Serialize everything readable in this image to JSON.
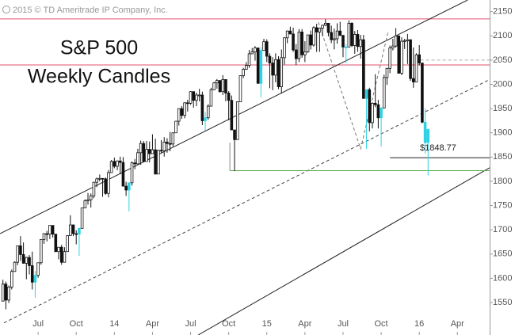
{
  "chart_data": {
    "type": "candlestick",
    "title": "S&P 500",
    "subtitle": "Weekly Candles",
    "credit": "2015 © TD Ameritrade IP Company, Inc.",
    "xlim": [
      -1,
      166
    ],
    "ylim": [
      1483,
      2174
    ],
    "yticks": [
      1550,
      1600,
      1650,
      1700,
      1750,
      1800,
      1850,
      1900,
      1950,
      2000,
      2050,
      2100,
      2150
    ],
    "xticks": [
      {
        "value": 12,
        "label": "Jul"
      },
      {
        "value": 25,
        "label": "Oct"
      },
      {
        "value": 38,
        "label": "14"
      },
      {
        "value": 51,
        "label": "Apr"
      },
      {
        "value": 64,
        "label": "Jul"
      },
      {
        "value": 77,
        "label": "Oct"
      },
      {
        "value": 90,
        "label": "15"
      },
      {
        "value": 103,
        "label": "Apr"
      },
      {
        "value": 116,
        "label": "Jul"
      },
      {
        "value": 129,
        "label": "Oct"
      },
      {
        "value": 142,
        "label": "16"
      },
      {
        "value": 155,
        "label": "Apr"
      }
    ],
    "highlight_color": "#2fd2e4",
    "highlight": [
      11,
      26,
      43,
      69,
      88,
      117,
      124,
      129,
      144,
      145
    ],
    "ohlc": [
      [
        1553,
        1597,
        1552,
        1588
      ],
      [
        1588,
        1593,
        1536,
        1555
      ],
      [
        1555,
        1585,
        1549,
        1582
      ],
      [
        1582,
        1618,
        1577,
        1614
      ],
      [
        1614,
        1635,
        1614,
        1633
      ],
      [
        1633,
        1667,
        1627,
        1667
      ],
      [
        1667,
        1687,
        1636,
        1649
      ],
      [
        1649,
        1674,
        1630,
        1631
      ],
      [
        1631,
        1644,
        1598,
        1643
      ],
      [
        1643,
        1648,
        1608,
        1626
      ],
      [
        1626,
        1655,
        1577,
        1592
      ],
      [
        1592,
        1615,
        1560,
        1606
      ],
      [
        1606,
        1632,
        1601,
        1632
      ],
      [
        1632,
        1680,
        1628,
        1680
      ],
      [
        1680,
        1693,
        1671,
        1692
      ],
      [
        1692,
        1698,
        1676,
        1691
      ],
      [
        1691,
        1709,
        1681,
        1709
      ],
      [
        1709,
        1709,
        1684,
        1691
      ],
      [
        1691,
        1691,
        1654,
        1655
      ],
      [
        1655,
        1664,
        1639,
        1664
      ],
      [
        1664,
        1669,
        1628,
        1633
      ],
      [
        1633,
        1664,
        1633,
        1655
      ],
      [
        1655,
        1689,
        1655,
        1688
      ],
      [
        1688,
        1730,
        1688,
        1710
      ],
      [
        1710,
        1711,
        1687,
        1692
      ],
      [
        1692,
        1699,
        1670,
        1691
      ],
      [
        1691,
        1704,
        1646,
        1703
      ],
      [
        1703,
        1745,
        1703,
        1745
      ],
      [
        1745,
        1763,
        1745,
        1760
      ],
      [
        1760,
        1776,
        1752,
        1762
      ],
      [
        1762,
        1775,
        1746,
        1770
      ],
      [
        1770,
        1799,
        1765,
        1798
      ],
      [
        1798,
        1808,
        1788,
        1805
      ],
      [
        1805,
        1814,
        1800,
        1806
      ],
      [
        1806,
        1806,
        1768,
        1805
      ],
      [
        1805,
        1808,
        1772,
        1775
      ],
      [
        1775,
        1823,
        1767,
        1818
      ],
      [
        1818,
        1844,
        1818,
        1841
      ],
      [
        1841,
        1849,
        1827,
        1831
      ],
      [
        1831,
        1843,
        1823,
        1842
      ],
      [
        1842,
        1851,
        1815,
        1839
      ],
      [
        1839,
        1850,
        1790,
        1790
      ],
      [
        1790,
        1799,
        1770,
        1782
      ],
      [
        1782,
        1797,
        1738,
        1797
      ],
      [
        1797,
        1841,
        1791,
        1838
      ],
      [
        1838,
        1846,
        1825,
        1836
      ],
      [
        1836,
        1867,
        1834,
        1859
      ],
      [
        1859,
        1884,
        1834,
        1878
      ],
      [
        1878,
        1883,
        1839,
        1841
      ],
      [
        1841,
        1883,
        1841,
        1866
      ],
      [
        1866,
        1882,
        1839,
        1857
      ],
      [
        1857,
        1897,
        1857,
        1865
      ],
      [
        1865,
        1888,
        1814,
        1815
      ],
      [
        1815,
        1865,
        1815,
        1864
      ],
      [
        1864,
        1885,
        1859,
        1863
      ],
      [
        1863,
        1891,
        1851,
        1881
      ],
      [
        1881,
        1889,
        1859,
        1878
      ],
      [
        1878,
        1902,
        1862,
        1877
      ],
      [
        1877,
        1901,
        1872,
        1900
      ],
      [
        1900,
        1924,
        1900,
        1924
      ],
      [
        1924,
        1950,
        1915,
        1950
      ],
      [
        1950,
        1955,
        1929,
        1936
      ],
      [
        1936,
        1963,
        1930,
        1962
      ],
      [
        1962,
        1968,
        1944,
        1961
      ],
      [
        1961,
        1986,
        1958,
        1985
      ],
      [
        1985,
        1985,
        1952,
        1967
      ],
      [
        1967,
        1983,
        1955,
        1978
      ],
      [
        1978,
        1991,
        1965,
        1978
      ],
      [
        1978,
        1985,
        1916,
        1925
      ],
      [
        1925,
        1943,
        1904,
        1931
      ],
      [
        1931,
        1959,
        1927,
        1955
      ],
      [
        1955,
        1993,
        1955,
        1989
      ],
      [
        1989,
        2005,
        1988,
        2003
      ],
      [
        2003,
        2011,
        1991,
        2008
      ],
      [
        2008,
        2008,
        1983,
        1985
      ],
      [
        1985,
        2019,
        1978,
        2010
      ],
      [
        2010,
        2010,
        1965,
        1982
      ],
      [
        1982,
        1986,
        1926,
        1967
      ],
      [
        1967,
        1977,
        1906,
        1906
      ],
      [
        1906,
        1906,
        1821,
        1886
      ],
      [
        1886,
        1965,
        1886,
        1964
      ],
      [
        1964,
        2018,
        1964,
        2018
      ],
      [
        2018,
        2034,
        2013,
        2031
      ],
      [
        2031,
        2046,
        2030,
        2039
      ],
      [
        2039,
        2071,
        2034,
        2063
      ],
      [
        2063,
        2075,
        2064,
        2067
      ],
      [
        2067,
        2079,
        2049,
        2075
      ],
      [
        2075,
        2076,
        2002,
        2002
      ],
      [
        2002,
        2077,
        1973,
        2070
      ],
      [
        2070,
        2094,
        2069,
        2088
      ],
      [
        2088,
        2093,
        2046,
        2058
      ],
      [
        2058,
        2064,
        1992,
        2044
      ],
      [
        2044,
        2056,
        1988,
        2019
      ],
      [
        2019,
        2064,
        2004,
        2051
      ],
      [
        2051,
        2058,
        1990,
        1995
      ],
      [
        1995,
        2072,
        1981,
        2055
      ],
      [
        2055,
        2097,
        2041,
        2096
      ],
      [
        2096,
        2111,
        2085,
        2110
      ],
      [
        2110,
        2119,
        2103,
        2104
      ],
      [
        2104,
        2117,
        2067,
        2071
      ],
      [
        2071,
        2083,
        2040,
        2053
      ],
      [
        2053,
        2114,
        2046,
        2108
      ],
      [
        2108,
        2114,
        2055,
        2061
      ],
      [
        2061,
        2089,
        2046,
        2067
      ],
      [
        2067,
        2102,
        2065,
        2102
      ],
      [
        2102,
        2111,
        2072,
        2081
      ],
      [
        2081,
        2120,
        2078,
        2117
      ],
      [
        2117,
        2125,
        2067,
        2108
      ],
      [
        2108,
        2117,
        2067,
        2116
      ],
      [
        2116,
        2123,
        2099,
        2122
      ],
      [
        2122,
        2134,
        2120,
        2126
      ],
      [
        2126,
        2126,
        2099,
        2107
      ],
      [
        2107,
        2121,
        2085,
        2092
      ],
      [
        2092,
        2115,
        2072,
        2094
      ],
      [
        2094,
        2126,
        2084,
        2110
      ],
      [
        2110,
        2129,
        2100,
        2101
      ],
      [
        2101,
        2102,
        2056,
        2077
      ],
      [
        2077,
        2083,
        2044,
        2077
      ],
      [
        2077,
        2132,
        2077,
        2126
      ],
      [
        2126,
        2128,
        2077,
        2080
      ],
      [
        2080,
        2110,
        2063,
        2103
      ],
      [
        2103,
        2112,
        2067,
        2078
      ],
      [
        2078,
        2102,
        2053,
        2092
      ],
      [
        2092,
        2102,
        1971,
        1971
      ],
      [
        1971,
        1989,
        1867,
        1989
      ],
      [
        1989,
        1993,
        1903,
        1921
      ],
      [
        1921,
        1963,
        1909,
        1961
      ],
      [
        1961,
        2021,
        1953,
        1958
      ],
      [
        1958,
        1968,
        1909,
        1931
      ],
      [
        1931,
        1953,
        1872,
        1951
      ],
      [
        1951,
        2020,
        1951,
        2014
      ],
      [
        2014,
        2034,
        1999,
        2033
      ],
      [
        2033,
        2080,
        2023,
        2075
      ],
      [
        2075,
        2094,
        2070,
        2079
      ],
      [
        2079,
        2116,
        2076,
        2100
      ],
      [
        2100,
        2100,
        2022,
        2023
      ],
      [
        2023,
        2097,
        2019,
        2089
      ],
      [
        2089,
        2094,
        2073,
        2090
      ],
      [
        2090,
        2104,
        2042,
        2092
      ],
      [
        2092,
        2093,
        2007,
        2012
      ],
      [
        2012,
        2076,
        1993,
        2005
      ],
      [
        2005,
        2064,
        2005,
        2061
      ],
      [
        2061,
        2081,
        2039,
        2044
      ],
      [
        2044,
        2044,
        1920,
        1922
      ],
      [
        1922,
        1950,
        1857,
        1880
      ],
      [
        1880,
        1908,
        1812,
        1907
      ]
    ],
    "lines": [
      {
        "points": [
          [
            -1,
            2135
          ],
          [
            166,
            2135
          ]
        ],
        "color": "#e0506e",
        "dash": false
      },
      {
        "points": [
          [
            -1,
            2040
          ],
          [
            166,
            2040
          ]
        ],
        "color": "#e0506e",
        "dash": false
      },
      {
        "points": [
          [
            -1,
            1692
          ],
          [
            158.5,
            2174
          ]
        ],
        "color": "#222222",
        "dash": false
      },
      {
        "points": [
          [
            0.35,
            1508
          ],
          [
            166,
            2010
          ]
        ],
        "color": "#444444",
        "dash": true
      },
      {
        "points": [
          [
            66.6,
            1483
          ],
          [
            166,
            1828
          ]
        ],
        "color": "#222222",
        "dash": false
      },
      {
        "points": [
          [
            107.6,
            2128
          ],
          [
            122,
            1867
          ],
          [
            131.4,
            2109
          ]
        ],
        "color": "#777777",
        "dash": true
      },
      {
        "points": [
          [
            140.5,
            2050
          ],
          [
            166,
            2050
          ]
        ],
        "color": "#aaaaaa",
        "dash": true
      },
      {
        "points": [
          [
            77.4,
            1880
          ],
          [
            77.4,
            1822
          ]
        ],
        "color": "#888888",
        "dash": false
      },
      {
        "points": [
          [
            77.4,
            1822
          ],
          [
            166,
            1822
          ]
        ],
        "color": "#5aa94a",
        "dash": false
      }
    ],
    "level": {
      "value": 1848.77,
      "label": "$1848.77",
      "from": 132,
      "color": "#222222"
    }
  }
}
